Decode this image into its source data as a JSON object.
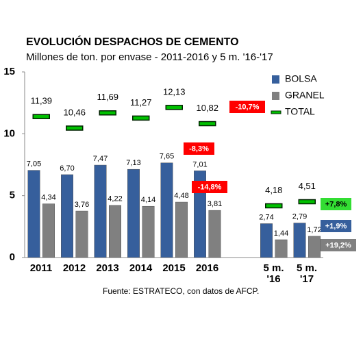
{
  "chart_data": {
    "type": "bar",
    "title": "EVOLUCIÓN DESPACHOS DE CEMENTO",
    "subtitle": "Millones de ton. por envase - 2011-2016 y 5 m. '16-'17",
    "categories": [
      "2011",
      "2012",
      "2013",
      "2014",
      "2015",
      "2016",
      null,
      "5 m.\n'16",
      "5 m.\n'17"
    ],
    "series": [
      {
        "name": "BOLSA",
        "color": "#365f9c",
        "values": [
          7.05,
          6.7,
          7.47,
          7.13,
          7.65,
          7.01,
          null,
          2.74,
          2.79
        ],
        "value_labels": [
          "7,05",
          "6,70",
          "7,47",
          "7,13",
          "7,65",
          "7,01",
          null,
          "2,74",
          "2,79"
        ]
      },
      {
        "name": "GRANEL",
        "color": "#808080",
        "values": [
          4.34,
          3.76,
          4.22,
          4.14,
          4.48,
          3.81,
          null,
          1.44,
          1.72
        ],
        "value_labels": [
          "4,34",
          "3,76",
          "4,22",
          "4,14",
          "4,48",
          "3,81",
          null,
          "1,44",
          "1,72"
        ]
      },
      {
        "name": "TOTAL",
        "color": "#00c000",
        "marker": "dash",
        "values": [
          11.39,
          10.46,
          11.69,
          11.27,
          12.13,
          10.82,
          null,
          4.18,
          4.51
        ],
        "value_labels": [
          "11,39",
          "10,46",
          "11,69",
          "11,27",
          "12,13",
          "10,82",
          null,
          "4,18",
          "4,51"
        ]
      }
    ],
    "ylim": [
      0,
      15
    ],
    "yticks": [
      0,
      5,
      10,
      15
    ],
    "grid": false,
    "legend": "top-right",
    "annotations": [
      {
        "text": "-10,7%",
        "color": "#ff0000"
      },
      {
        "text": "-8,3%",
        "color": "#ff0000"
      },
      {
        "text": "-14,8%",
        "color": "#ff0000"
      },
      {
        "text": "+7,8%",
        "color": "#33dd33"
      },
      {
        "text": "+1,9%",
        "color": "#365f9c"
      },
      {
        "text": "+19,2%",
        "color": "#808080"
      }
    ],
    "source": "Fuente: ESTRATECO, con datos de AFCP."
  }
}
